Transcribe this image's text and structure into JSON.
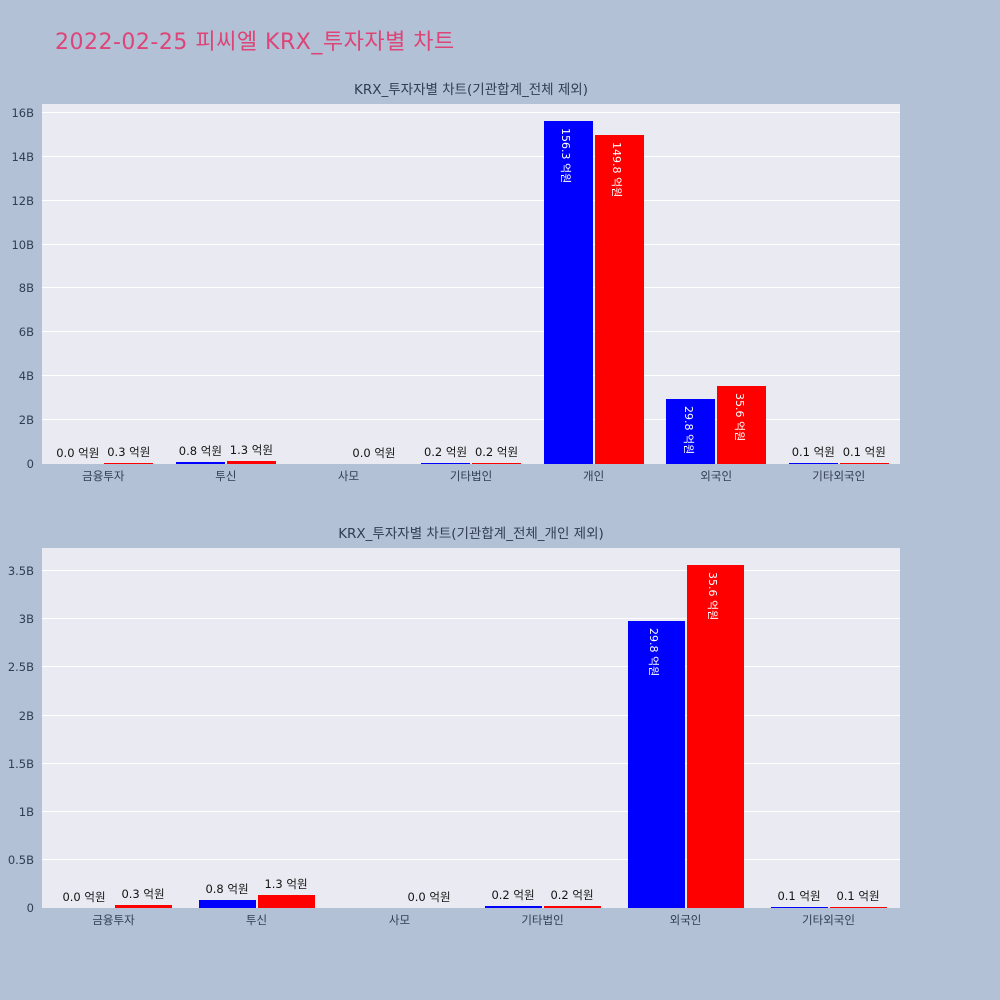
{
  "page": {
    "title": "2022-02-25 피씨엘 KRX_투자자별 차트"
  },
  "accent": {
    "title_color": "#dd4477",
    "plot_background": "#eaeaf2",
    "page_background": "#b2c1d6",
    "series_colors": [
      "#0000ff",
      "#ff0000"
    ]
  },
  "chart_data": [
    {
      "type": "bar",
      "title": "KRX_투자자별 차트(기관합계_전체 제외)",
      "unit": "억원",
      "categories": [
        "금융투자",
        "투신",
        "사모",
        "기타법인",
        "개인",
        "외국인",
        "기타외국인"
      ],
      "series": [
        {
          "color": "#0000ff",
          "values_eok": [
            0.0,
            0.8,
            null,
            0.2,
            156.3,
            29.8,
            0.1
          ],
          "labels": [
            "0.0 억원",
            "0.8 억원",
            null,
            "0.2 억원",
            "156.3 억원",
            "29.8 억원",
            "0.1 억원"
          ]
        },
        {
          "color": "#ff0000",
          "values_eok": [
            0.3,
            1.3,
            0.0,
            0.2,
            149.8,
            35.6,
            0.1
          ],
          "labels": [
            "0.3 억원",
            "1.3 억원",
            "0.0 억원",
            "0.2 억원",
            "149.8 억원",
            "35.6 억원",
            "0.1 억원"
          ]
        }
      ],
      "eok_to_billion": 0.1,
      "ylim_billion": [
        0,
        16.4
      ],
      "yticks": [
        {
          "v": 0,
          "label": "0"
        },
        {
          "v": 2,
          "label": "2B"
        },
        {
          "v": 4,
          "label": "4B"
        },
        {
          "v": 6,
          "label": "6B"
        },
        {
          "v": 8,
          "label": "8B"
        },
        {
          "v": 10,
          "label": "10B"
        },
        {
          "v": 12,
          "label": "12B"
        },
        {
          "v": 14,
          "label": "14B"
        },
        {
          "v": 16,
          "label": "16B"
        }
      ],
      "grid": true,
      "legend": "none"
    },
    {
      "type": "bar",
      "title": "KRX_투자자별 차트(기관합계_전체_개인 제외)",
      "unit": "억원",
      "categories": [
        "금융투자",
        "투신",
        "사모",
        "기타법인",
        "외국인",
        "기타외국인"
      ],
      "series": [
        {
          "color": "#0000ff",
          "values_eok": [
            0.0,
            0.8,
            null,
            0.2,
            29.8,
            0.1
          ],
          "labels": [
            "0.0 억원",
            "0.8 억원",
            null,
            "0.2 억원",
            "29.8 억원",
            "0.1 억원"
          ]
        },
        {
          "color": "#ff0000",
          "values_eok": [
            0.3,
            1.3,
            0.0,
            0.2,
            35.6,
            0.1
          ],
          "labels": [
            "0.3 억원",
            "1.3 억원",
            "0.0 억원",
            "0.2 억원",
            "35.6 억원",
            "0.1 억원"
          ]
        }
      ],
      "eok_to_billion": 0.1,
      "ylim_billion": [
        0,
        3.74
      ],
      "yticks": [
        {
          "v": 0,
          "label": "0"
        },
        {
          "v": 0.5,
          "label": "0.5B"
        },
        {
          "v": 1,
          "label": "1B"
        },
        {
          "v": 1.5,
          "label": "1.5B"
        },
        {
          "v": 2,
          "label": "2B"
        },
        {
          "v": 2.5,
          "label": "2.5B"
        },
        {
          "v": 3,
          "label": "3B"
        },
        {
          "v": 3.5,
          "label": "3.5B"
        }
      ],
      "grid": true,
      "legend": "none"
    }
  ]
}
